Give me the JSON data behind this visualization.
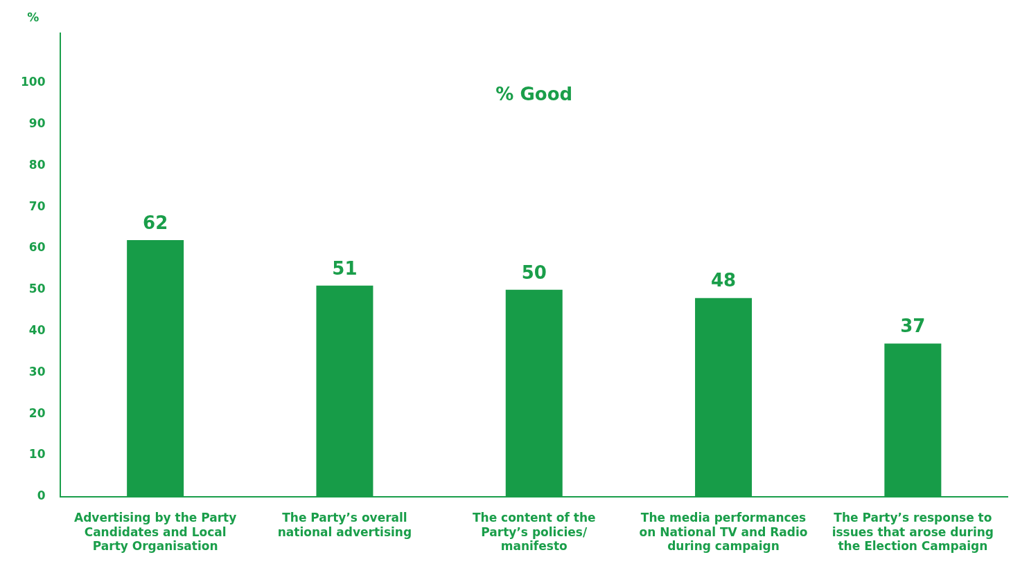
{
  "chart_data": {
    "type": "bar",
    "title": "% Good",
    "ylabel": "%",
    "categories": [
      "Advertising by the Party Candidates and Local Party Organisation",
      "The Party’s overall national advertising",
      "The content of the Party’s policies/ manifesto",
      "The media performances on National TV and Radio during campaign",
      "The Party’s response to issues that arose during the Election Campaign"
    ],
    "values": [
      62,
      51,
      50,
      48,
      37
    ],
    "color": "#179c48",
    "ylim": [
      0,
      112
    ],
    "yticks": [
      0,
      10,
      20,
      30,
      40,
      50,
      60,
      70,
      80,
      90,
      100
    ],
    "grid": false,
    "legend": false,
    "data_labels": true
  }
}
